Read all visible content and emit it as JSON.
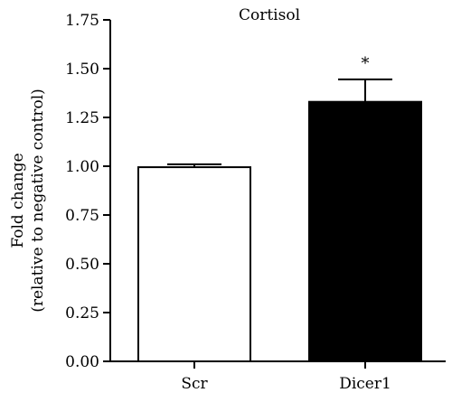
{
  "chart_data": {
    "type": "bar",
    "title": "Cortisol",
    "ylabel": "Fold change",
    "ylabel_sub": "(relative to negative control)",
    "xlabel": "",
    "categories": [
      "Scr",
      "Dicer1"
    ],
    "values": [
      0.995,
      1.33
    ],
    "errors": [
      0.015,
      0.115
    ],
    "bar_colors": [
      "#ffffff",
      "#000000"
    ],
    "annotations": [
      "",
      "*"
    ],
    "ylim": [
      0,
      1.75
    ],
    "yticks": [
      0.0,
      0.25,
      0.5,
      0.75,
      1.0,
      1.25,
      1.5,
      1.75
    ],
    "ytick_labels": [
      "0.00",
      "0.25",
      "0.50",
      "0.75",
      "1.00",
      "1.25",
      "1.50",
      "1.75"
    ],
    "grid": false,
    "legend": "none"
  }
}
